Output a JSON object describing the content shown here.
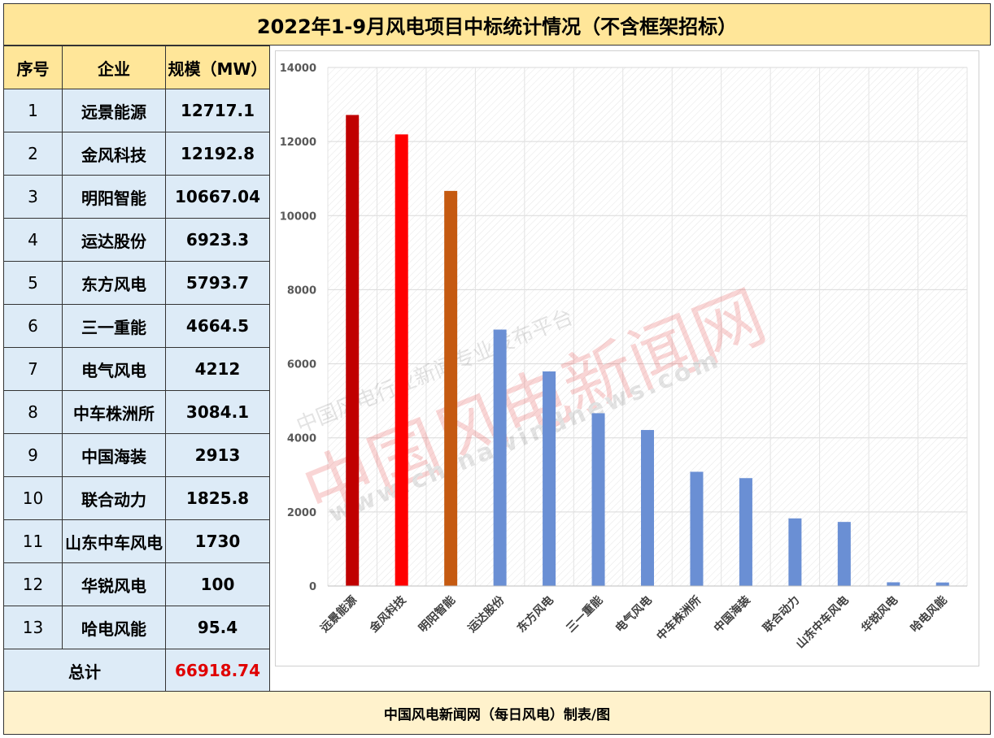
{
  "title": "2022年1-9月风电项目中标统计情况（不含框架招标）",
  "footer": "中国风电新闻网（每日风电）制表/图",
  "table": {
    "headers": [
      "序号",
      "企业",
      "规模（MW）"
    ],
    "rows": [
      {
        "no": "1",
        "name": "远景能源",
        "value": "12717.1"
      },
      {
        "no": "2",
        "name": "金风科技",
        "value": "12192.8"
      },
      {
        "no": "3",
        "name": "明阳智能",
        "value": "10667.04"
      },
      {
        "no": "4",
        "name": "运达股份",
        "value": "6923.3"
      },
      {
        "no": "5",
        "name": "东方风电",
        "value": "5793.7"
      },
      {
        "no": "6",
        "name": "三一重能",
        "value": "4664.5"
      },
      {
        "no": "7",
        "name": "电气风电",
        "value": "4212"
      },
      {
        "no": "8",
        "name": "中车株洲所",
        "value": "3084.1"
      },
      {
        "no": "9",
        "name": "中国海装",
        "value": "2913"
      },
      {
        "no": "10",
        "name": "联合动力",
        "value": "1825.8"
      },
      {
        "no": "11",
        "name": "山东中车风电",
        "value": "1730"
      },
      {
        "no": "12",
        "name": "华锐风电",
        "value": "100"
      },
      {
        "no": "13",
        "name": "哈电风能",
        "value": "95.4"
      }
    ],
    "total_label": "总计",
    "total_value": "66918.74",
    "total_color": "#e00000"
  },
  "watermark": {
    "line1": "中国风电行业新闻专业发布平台",
    "line2": "中国风电新闻网",
    "line3": "www.chinawindnews.com"
  },
  "chart_data": {
    "type": "bar",
    "categories": [
      "远景能源",
      "金风科技",
      "明阳智能",
      "运达股份",
      "东方风电",
      "三一重能",
      "电气风电",
      "中车株洲所",
      "中国海装",
      "联合动力",
      "山东中车风电",
      "华锐风电",
      "哈电风能"
    ],
    "values": [
      12717.1,
      12192.8,
      10667.04,
      6923.3,
      5793.7,
      4664.5,
      4212,
      3084.1,
      2913,
      1825.8,
      1730,
      100,
      95.4
    ],
    "colors": [
      "#c00000",
      "#ff0000",
      "#c55a11",
      "#6a8fd4",
      "#6a8fd4",
      "#6a8fd4",
      "#6a8fd4",
      "#6a8fd4",
      "#6a8fd4",
      "#6a8fd4",
      "#6a8fd4",
      "#6a8fd4",
      "#6a8fd4"
    ],
    "ylim": [
      0,
      14000
    ],
    "yticks": [
      "0",
      "2000",
      "4000",
      "6000",
      "8000",
      "10000",
      "12000",
      "14000"
    ],
    "grid": true,
    "title": "",
    "xlabel": "",
    "ylabel": ""
  }
}
